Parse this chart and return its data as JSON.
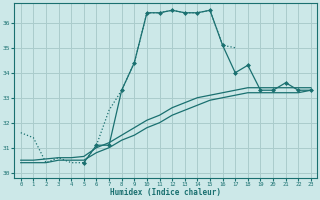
{
  "xlabel": "Humidex (Indice chaleur)",
  "bg_color": "#cce8e8",
  "grid_color": "#aacccc",
  "line_color": "#1a7070",
  "xlim": [
    -0.5,
    23.5
  ],
  "ylim": [
    29.8,
    36.8
  ],
  "yticks": [
    30,
    31,
    32,
    33,
    34,
    35,
    36
  ],
  "xticks": [
    0,
    1,
    2,
    3,
    4,
    5,
    6,
    7,
    8,
    9,
    10,
    11,
    12,
    13,
    14,
    15,
    16,
    17,
    18,
    19,
    20,
    21,
    22,
    23
  ],
  "line_dotted_x": [
    0,
    1,
    2,
    3,
    4,
    5,
    6,
    7,
    8,
    9,
    10,
    11,
    12,
    13,
    14,
    15,
    16,
    17
  ],
  "line_dotted_y": [
    31.6,
    31.4,
    30.4,
    30.6,
    30.4,
    30.4,
    31.1,
    32.5,
    33.3,
    34.4,
    36.4,
    36.4,
    36.5,
    36.4,
    36.4,
    36.5,
    35.1,
    35.0
  ],
  "line_marker_x": [
    5,
    6,
    7,
    8,
    9,
    10,
    11,
    12,
    13,
    14,
    15,
    16,
    17,
    18,
    19,
    20,
    21,
    22,
    23
  ],
  "line_marker_y": [
    30.4,
    31.1,
    31.1,
    33.3,
    34.4,
    36.4,
    36.4,
    36.5,
    36.4,
    36.4,
    36.5,
    35.1,
    34.0,
    34.3,
    33.3,
    33.3,
    33.6,
    33.3,
    33.3
  ],
  "line_straight1_x": [
    0,
    1,
    2,
    3,
    4,
    5,
    6,
    7,
    8,
    9,
    10,
    11,
    12,
    13,
    14,
    15,
    16,
    17,
    18,
    19,
    20,
    21,
    22,
    23
  ],
  "line_straight1_y": [
    30.4,
    30.4,
    30.4,
    30.5,
    30.5,
    30.5,
    30.8,
    31.0,
    31.3,
    31.5,
    31.8,
    32.0,
    32.3,
    32.5,
    32.7,
    32.9,
    33.0,
    33.1,
    33.2,
    33.2,
    33.2,
    33.2,
    33.2,
    33.3
  ],
  "line_straight2_x": [
    0,
    1,
    2,
    3,
    4,
    5,
    6,
    7,
    8,
    9,
    10,
    11,
    12,
    13,
    14,
    15,
    16,
    17,
    18,
    19,
    20,
    21,
    22,
    23
  ],
  "line_straight2_y": [
    30.5,
    30.5,
    30.55,
    30.6,
    30.6,
    30.65,
    31.0,
    31.2,
    31.5,
    31.8,
    32.1,
    32.3,
    32.6,
    32.8,
    33.0,
    33.1,
    33.2,
    33.3,
    33.4,
    33.4,
    33.4,
    33.4,
    33.4,
    33.4
  ]
}
